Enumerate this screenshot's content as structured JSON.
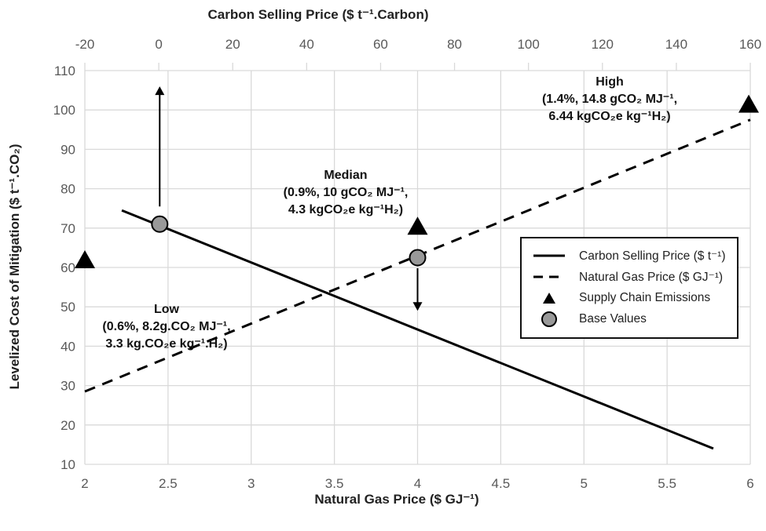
{
  "chart_data": {
    "type": "line",
    "x_top_label": "Carbon Selling Price ($ t⁻¹.Carbon)",
    "x_bottom_label": "Natural Gas Price ($ GJ⁻¹)",
    "ylabel": "Levelized Cost of Mitigation ($ t⁻¹.CO₂)",
    "x_bottom_range": [
      2,
      6
    ],
    "x_bottom_ticks": [
      "2",
      "2.5",
      "3",
      "3.5",
      "4",
      "4.5",
      "5",
      "5.5",
      "6"
    ],
    "x_top_range": [
      -20,
      160
    ],
    "x_top_ticks": [
      "-20",
      "0",
      "20",
      "40",
      "60",
      "80",
      "100",
      "120",
      "140",
      "160"
    ],
    "ylim": [
      10,
      110
    ],
    "y_ticks": [
      "10",
      "20",
      "30",
      "40",
      "50",
      "60",
      "70",
      "80",
      "90",
      "100",
      "110"
    ],
    "grid": true,
    "legend_position": "lower-right",
    "series": [
      {
        "name": "Carbon Selling Price ($ t⁻¹)",
        "axis": "top",
        "style": "solid",
        "x": [
          -10,
          150
        ],
        "y": [
          74.5,
          14
        ]
      },
      {
        "name": "Natural Gas Price ($ GJ⁻¹)",
        "axis": "bottom",
        "style": "dashed",
        "x": [
          2,
          6
        ],
        "y": [
          28.5,
          97.5
        ]
      },
      {
        "name": "Supply Chain Emissions",
        "axis": "bottom",
        "style": "triangle",
        "x": [
          2,
          4,
          6
        ],
        "y": [
          62,
          70.5,
          101.5
        ]
      },
      {
        "name": "Base Values",
        "axis": "bottom",
        "style": "circle",
        "x": [
          2.45,
          4
        ],
        "y": [
          71,
          62.5
        ]
      }
    ],
    "arrows": [
      {
        "x": 2.45,
        "from": 75.5,
        "to": 106
      },
      {
        "x": 4,
        "from": 59.8,
        "to": 49
      }
    ],
    "annotations": [
      {
        "title": "Low",
        "line1": "(0.6%, 8.2g.CO₂ MJ⁻¹,",
        "line2": "3.3 kg.CO₂e kg⁻¹.H₂)"
      },
      {
        "title": "Median",
        "line1": "(0.9%, 10 gCO₂ MJ⁻¹,",
        "line2": "4.3 kgCO₂e kg⁻¹H₂)"
      },
      {
        "title": "High",
        "line1": "(1.4%, 14.8 gCO₂ MJ⁻¹,",
        "line2": "6.44 kgCO₂e kg⁻¹H₂)"
      }
    ],
    "colors": {
      "line": "#000000",
      "base_fill": "#999999",
      "grid": "#d9d9d9",
      "tick": "#595959"
    }
  }
}
